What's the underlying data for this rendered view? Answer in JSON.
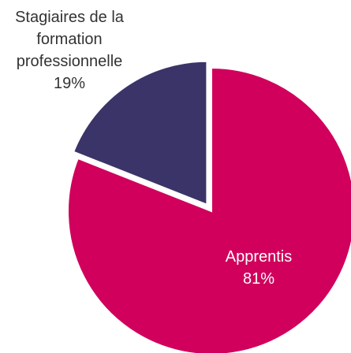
{
  "chart_data": {
    "type": "pie",
    "categories": [
      "Apprentis",
      "Stagiaires de la formation professionnelle"
    ],
    "values": [
      81,
      19
    ],
    "value_labels": [
      "81%",
      "19%"
    ],
    "colors": [
      "#d0005c",
      "#3b3468"
    ]
  }
}
